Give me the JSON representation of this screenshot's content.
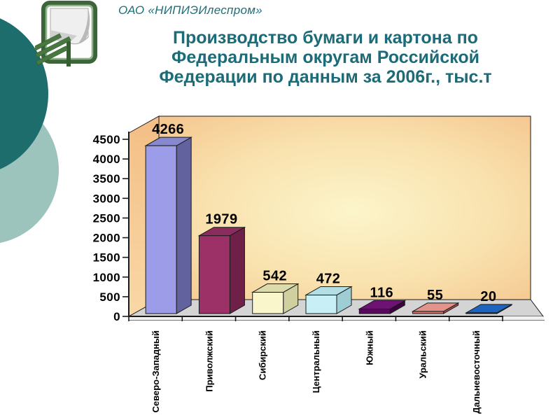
{
  "slide": {
    "org_name": "ОАО «НИПИЭИлеспром»",
    "title": "Производство бумаги и картона по Федеральным округам Российской Федерации по данным за 2006г., тыс.т",
    "title_lines": [
      "Производство бумаги и картона по",
      "Федеральным округам Российской",
      "Федерации по данным за 2006г., тыс.т"
    ]
  },
  "colors": {
    "title_text": "#1b6b78",
    "decor_circle_dark": "#1e6d6d",
    "decor_circle_light": "#9dc3bd",
    "wall_center": "#fcf5cb",
    "wall_edge": "#f4c18a",
    "floor": "#d4d4d4",
    "axis": "#1a1a1a"
  },
  "chart_data": {
    "type": "bar",
    "title": "Производство бумаги и картона по Федеральным округам Российской Федерации по данным за 2006г., тыс.т",
    "style": "3d-bar",
    "categories": [
      "Северо-Западный",
      "Приволжский",
      "Сибирский",
      "Центральный",
      "Южный",
      "Уральский",
      "Дальневосточный"
    ],
    "values": [
      4266,
      1979,
      542,
      472,
      116,
      55,
      20
    ],
    "data_labels_shown": true,
    "xlabel": "",
    "ylabel": "",
    "unit_label": "тыс.т",
    "ylim": [
      0,
      4500
    ],
    "y_tick_step": 500,
    "y_ticks": [
      0,
      500,
      1000,
      1500,
      2000,
      2500,
      3000,
      3500,
      4000,
      4500
    ],
    "gridlines": false,
    "legend_position": "none",
    "bar_colors": [
      {
        "front": "#9c9ce8",
        "side": "#62629e",
        "top": "#8888ce"
      },
      {
        "front": "#9c3168",
        "side": "#6e2048",
        "top": "#8a2c5c"
      },
      {
        "front": "#faf6cc",
        "side": "#cfcf9f",
        "top": "#dbdbae"
      },
      {
        "front": "#c8eff5",
        "side": "#9ecdd4",
        "top": "#b3dee5"
      },
      {
        "front": "#57095c",
        "side": "#3a0340",
        "top": "#6e1273"
      },
      {
        "front": "#d5736c",
        "side": "#a34f4c",
        "top": "#e2938b"
      },
      {
        "front": "#134e96",
        "side": "#0e3a70",
        "top": "#1d64be"
      }
    ]
  }
}
